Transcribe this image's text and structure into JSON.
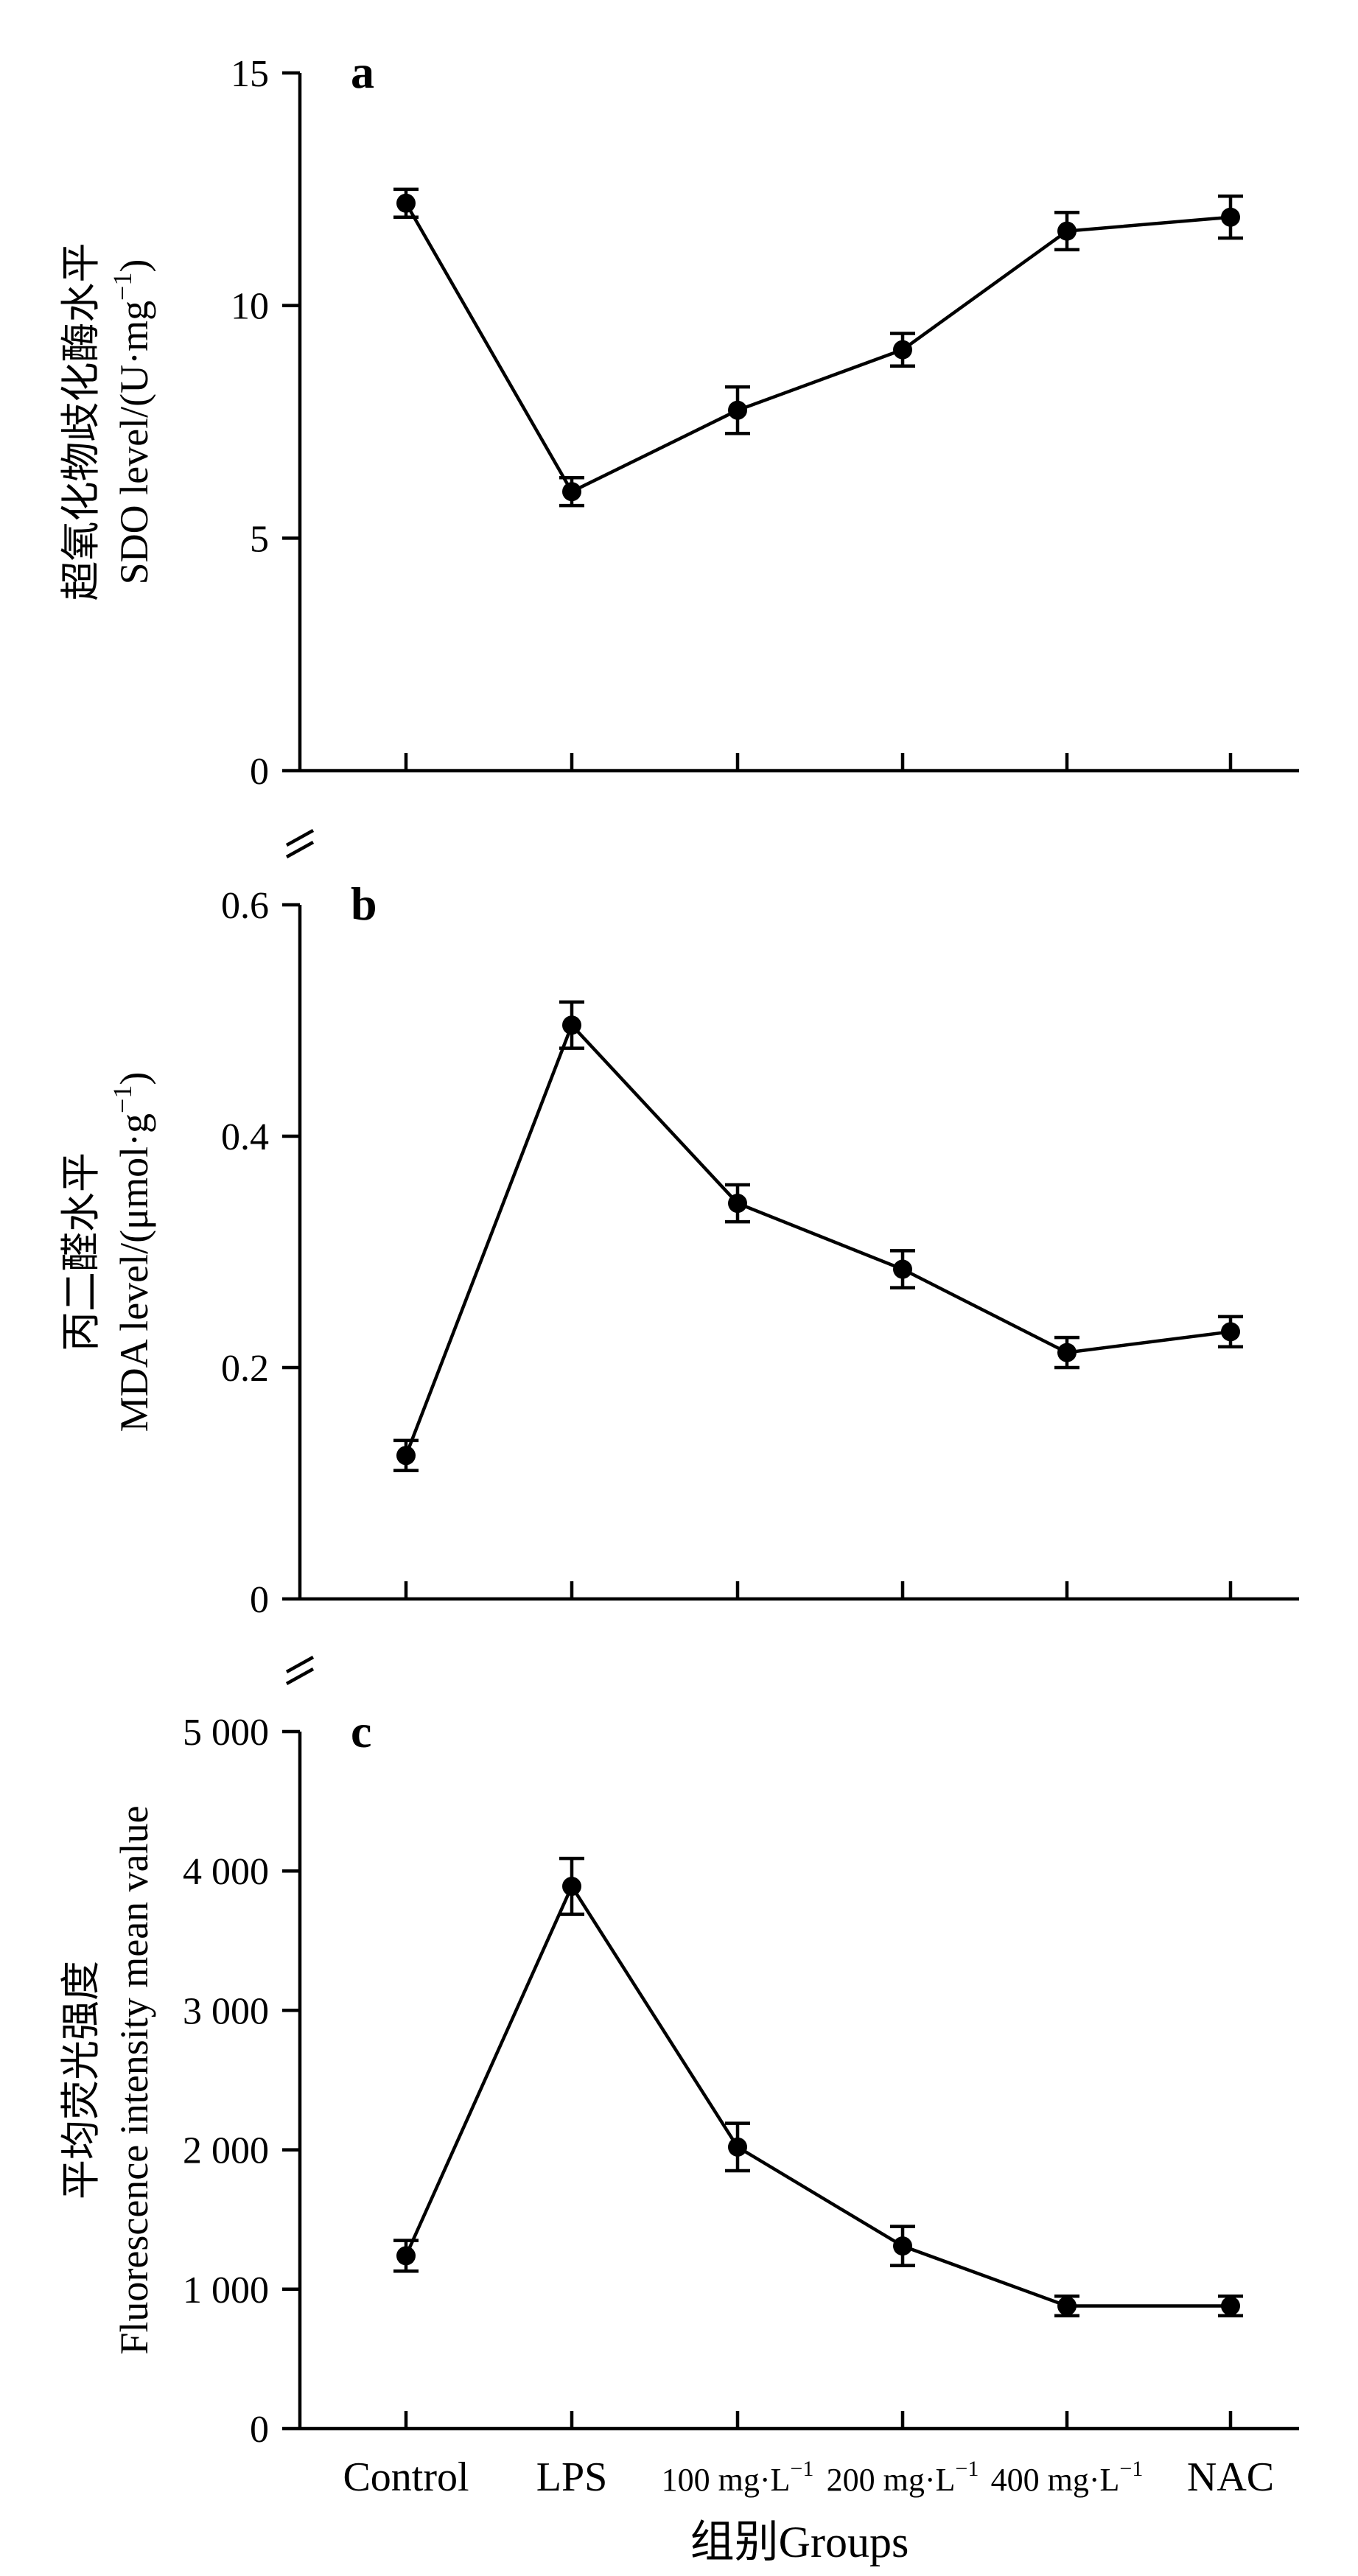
{
  "chart_data": [
    {
      "type": "line",
      "panel_label": "a",
      "ylabel_zh": "超氧化物歧化酶水平",
      "ylabel_en": "SDO level/(U·mg",
      "ylabel_en_sup": "−1",
      "ylabel_en_end": ")",
      "ylim": [
        0,
        15
      ],
      "yticks": [
        0,
        5,
        10,
        15
      ],
      "ytick_labels": [
        "0",
        "5",
        "10",
        "15"
      ],
      "values": [
        12.2,
        6.0,
        7.75,
        9.05,
        11.6,
        11.9
      ],
      "errors": [
        0.3,
        0.3,
        0.5,
        0.35,
        0.4,
        0.45
      ],
      "axis_break": false
    },
    {
      "type": "line",
      "panel_label": "b",
      "ylabel_zh": "丙二醛水平",
      "ylabel_en": "MDA level/(μmol·g",
      "ylabel_en_sup": "−1",
      "ylabel_en_end": ")",
      "ylim": [
        0,
        0.6
      ],
      "yticks": [
        0,
        0.2,
        0.4,
        0.6
      ],
      "ytick_labels": [
        "0",
        "0.2",
        "0.4",
        "0.6"
      ],
      "values": [
        0.124,
        0.496,
        0.342,
        0.285,
        0.213,
        0.231
      ],
      "errors": [
        0.013,
        0.02,
        0.016,
        0.016,
        0.013,
        0.013
      ],
      "axis_break": true
    },
    {
      "type": "line",
      "panel_label": "c",
      "ylabel_zh": "平均荧光强度",
      "ylabel_en": "Fluorescence intensity mean value",
      "ylabel_en_sup": "",
      "ylabel_en_end": "",
      "ylim": [
        0,
        5000
      ],
      "yticks": [
        0,
        1000,
        2000,
        3000,
        4000,
        5000
      ],
      "ytick_labels": [
        "0",
        "1 000",
        "2 000",
        "3 000",
        "4 000",
        "5 000"
      ],
      "values": [
        1240,
        3890,
        2020,
        1310,
        880,
        880
      ],
      "errors": [
        110,
        200,
        170,
        140,
        70,
        70
      ],
      "axis_break": true
    }
  ],
  "categories": [
    {
      "text": "Control",
      "sup": ""
    },
    {
      "text": "LPS",
      "sup": ""
    },
    {
      "text": "100 mg·L",
      "sup": "−1"
    },
    {
      "text": "200 mg·L",
      "sup": "−1"
    },
    {
      "text": "400 mg·L",
      "sup": "−1"
    },
    {
      "text": "NAC",
      "sup": ""
    }
  ],
  "xlabel": "组别Groups"
}
